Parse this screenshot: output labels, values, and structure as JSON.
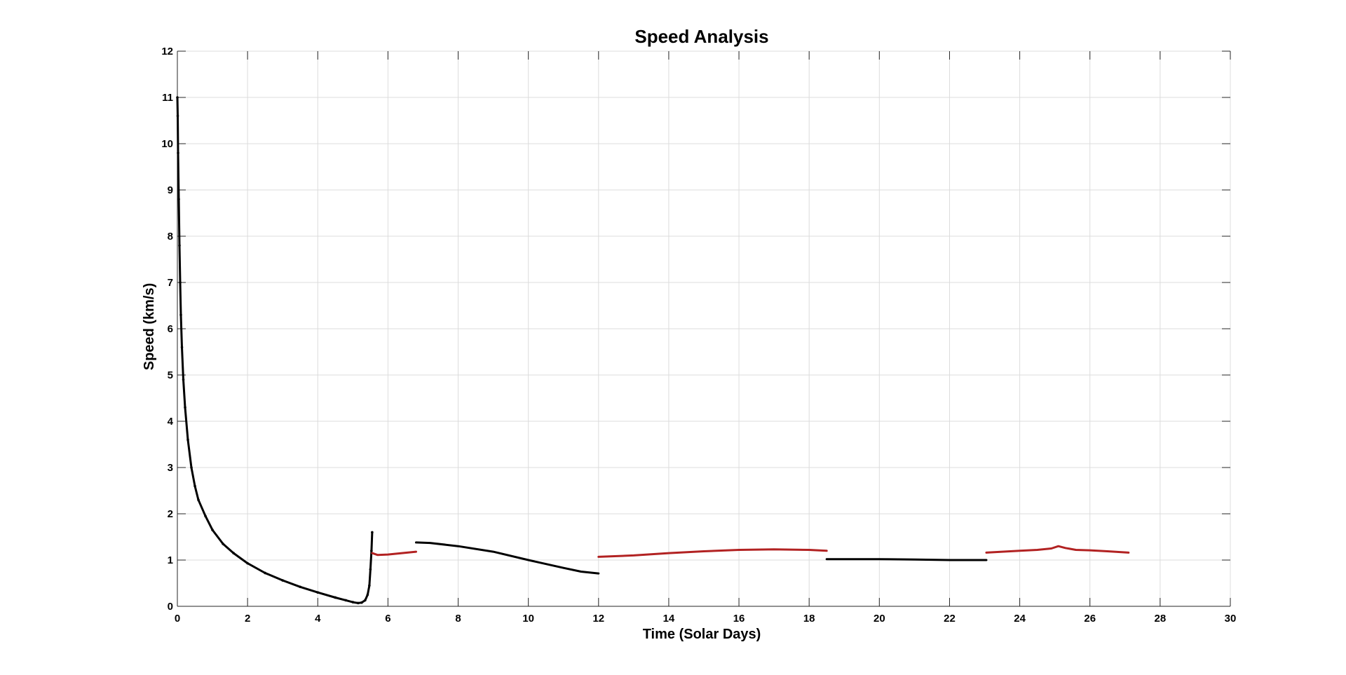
{
  "chart_data": {
    "type": "line",
    "title": "Speed Analysis",
    "xlabel": "Time (Solar Days)",
    "ylabel": "Speed (km/s)",
    "xlim": [
      0,
      30
    ],
    "ylim": [
      0,
      12
    ],
    "xticks": [
      "0",
      "2",
      "4",
      "6",
      "8",
      "10",
      "12",
      "14",
      "16",
      "18",
      "20",
      "22",
      "24",
      "26",
      "28",
      "30"
    ],
    "yticks": [
      "0",
      "1",
      "2",
      "3",
      "4",
      "5",
      "6",
      "7",
      "8",
      "9",
      "10",
      "11",
      "12"
    ],
    "grid": true,
    "series": [
      {
        "color": "#000000",
        "markers": true,
        "points": [
          [
            0,
            11.0
          ],
          [
            0.01,
            10.6
          ],
          [
            0.02,
            9.8
          ],
          [
            0.04,
            8.8
          ],
          [
            0.06,
            7.8
          ],
          [
            0.08,
            7.0
          ],
          [
            0.1,
            6.3
          ],
          [
            0.13,
            5.6
          ],
          [
            0.17,
            4.9
          ],
          [
            0.22,
            4.3
          ],
          [
            0.3,
            3.6
          ],
          [
            0.4,
            3.0
          ],
          [
            0.5,
            2.6
          ],
          [
            0.6,
            2.3
          ],
          [
            0.8,
            1.95
          ],
          [
            1.0,
            1.65
          ],
          [
            1.3,
            1.35
          ],
          [
            1.6,
            1.15
          ],
          [
            2.0,
            0.93
          ],
          [
            2.5,
            0.72
          ],
          [
            3.0,
            0.56
          ],
          [
            3.5,
            0.42
          ],
          [
            4.0,
            0.3
          ],
          [
            4.5,
            0.19
          ],
          [
            4.8,
            0.13
          ],
          [
            5.0,
            0.09
          ],
          [
            5.15,
            0.07
          ],
          [
            5.25,
            0.08
          ],
          [
            5.35,
            0.13
          ],
          [
            5.42,
            0.25
          ],
          [
            5.47,
            0.45
          ],
          [
            5.5,
            0.8
          ],
          [
            5.53,
            1.2
          ],
          [
            5.55,
            1.6
          ]
        ]
      },
      {
        "color": "#b22222",
        "markers": false,
        "points": [
          [
            5.55,
            1.15
          ],
          [
            5.7,
            1.11
          ],
          [
            6.0,
            1.12
          ],
          [
            6.4,
            1.15
          ],
          [
            6.8,
            1.18
          ]
        ]
      },
      {
        "color": "#000000",
        "markers": false,
        "points": [
          [
            6.8,
            1.38
          ],
          [
            7.2,
            1.37
          ],
          [
            8,
            1.3
          ],
          [
            9,
            1.18
          ],
          [
            10,
            1.0
          ],
          [
            11,
            0.83
          ],
          [
            11.5,
            0.75
          ],
          [
            12,
            0.71
          ]
        ]
      },
      {
        "color": "#b22222",
        "markers": false,
        "points": [
          [
            12,
            1.07
          ],
          [
            13,
            1.1
          ],
          [
            14,
            1.15
          ],
          [
            15,
            1.19
          ],
          [
            16,
            1.22
          ],
          [
            17,
            1.23
          ],
          [
            18,
            1.22
          ],
          [
            18.5,
            1.2
          ]
        ]
      },
      {
        "color": "#000000",
        "markers": false,
        "points": [
          [
            18.5,
            1.02
          ],
          [
            19,
            1.02
          ],
          [
            20,
            1.02
          ],
          [
            21,
            1.01
          ],
          [
            22,
            1.0
          ],
          [
            23.05,
            1.0
          ]
        ]
      },
      {
        "color": "#b22222",
        "markers": false,
        "points": [
          [
            23.05,
            1.16
          ],
          [
            23.5,
            1.18
          ],
          [
            24,
            1.2
          ],
          [
            24.5,
            1.22
          ],
          [
            24.9,
            1.25
          ],
          [
            25.1,
            1.3
          ],
          [
            25.3,
            1.26
          ],
          [
            25.6,
            1.22
          ],
          [
            26,
            1.21
          ],
          [
            26.5,
            1.19
          ],
          [
            27.1,
            1.16
          ]
        ]
      }
    ]
  }
}
